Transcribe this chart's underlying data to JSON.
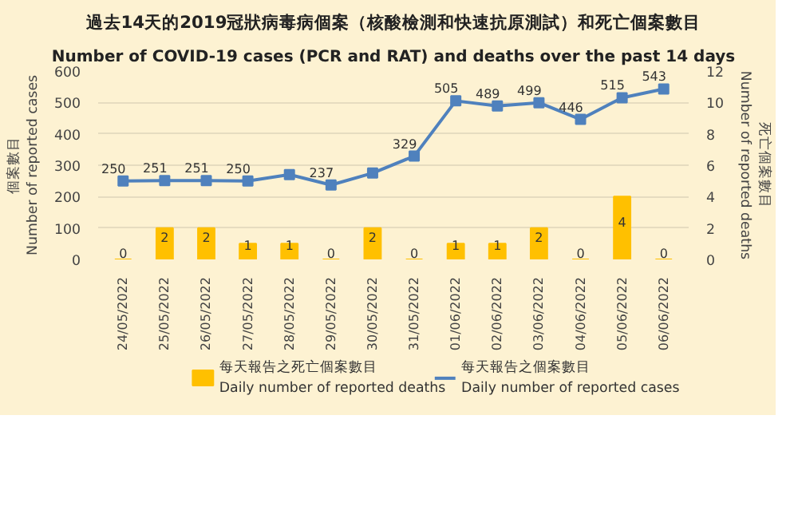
{
  "chart_data": {
    "type": "bar",
    "title": "過去14天的2019冠狀病毒病個案（核酸檢測和快速抗原測試）和死亡個案數目",
    "subtitle": "Number of COVID-19 cases (PCR and RAT) and deaths over the past 14 days",
    "ylabel": "個案數目\nNumber of reported cases",
    "y2label": "死亡個案數目\nNumber of reported deaths",
    "categories": [
      "24/05/2022",
      "25/05/2022",
      "26/05/2022",
      "27/05/2022",
      "28/05/2022",
      "29/05/2022",
      "30/05/2022",
      "31/05/2022",
      "01/06/2022",
      "02/06/2022",
      "03/06/2022",
      "04/06/2022",
      "05/06/2022",
      "06/06/2022"
    ],
    "series": [
      {
        "name": "每天報告之死亡個案數目\nDaily number of reported deaths",
        "axis": "y2",
        "color": "#ffc000",
        "values": [
          0,
          2,
          2,
          1,
          1,
          0,
          2,
          0,
          1,
          1,
          2,
          0,
          4,
          0
        ],
        "value_labels": [
          "0",
          "2",
          "2",
          "1",
          "1",
          "0",
          "2",
          "0",
          "1",
          "1",
          "2",
          "0",
          "4",
          "0"
        ]
      },
      {
        "name": "每天報告之個案數目\nDaily number of reported cases",
        "type": "line",
        "color": "#4f81bd",
        "marker": "square",
        "values": [
          250,
          251,
          251,
          250,
          270,
          237,
          275,
          329,
          505,
          489,
          499,
          446,
          515,
          543
        ],
        "value_labels": [
          "250",
          "251",
          "251",
          "250",
          null,
          "237",
          null,
          "329",
          "505",
          "489",
          "499",
          "446",
          "515",
          "543"
        ]
      }
    ],
    "ylim": [
      0,
      600
    ],
    "yticks": [
      0,
      100,
      200,
      300,
      400,
      500,
      600
    ],
    "y2lim": [
      0,
      12
    ],
    "y2ticks": [
      0,
      2,
      4,
      6,
      8,
      10,
      12
    ],
    "grid": "y",
    "legend": "bottom"
  }
}
